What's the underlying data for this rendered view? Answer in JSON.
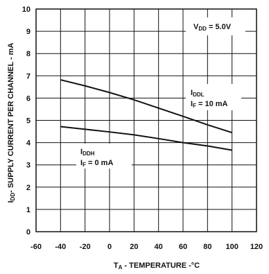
{
  "chart_data": {
    "type": "line",
    "title": "",
    "xlabel": "TA - TEMPERATURE -°C",
    "ylabel": "IDD- SUPPLY CURRENT PER CHANNEL - mA",
    "xlim": [
      -60,
      120
    ],
    "ylim": [
      0,
      10
    ],
    "x_ticks": [
      "-60",
      "-40",
      "-20",
      "0",
      "20",
      "40",
      "60",
      "80",
      "100",
      "120"
    ],
    "y_ticks": [
      "0",
      "1",
      "2",
      "3",
      "4",
      "5",
      "6",
      "7",
      "8",
      "9",
      "10"
    ],
    "grid": true,
    "series": [
      {
        "name": "IDDL IF = 10 mA",
        "x": [
          -40,
          -20,
          0,
          20,
          40,
          60,
          80,
          100
        ],
        "y": [
          6.82,
          6.55,
          6.25,
          5.92,
          5.55,
          5.18,
          4.8,
          4.45
        ]
      },
      {
        "name": "IDDH IF = 0 mA",
        "x": [
          -40,
          -20,
          0,
          20,
          40,
          60,
          80,
          100
        ],
        "y": [
          4.72,
          4.6,
          4.48,
          4.35,
          4.18,
          4.0,
          3.85,
          3.66
        ]
      }
    ],
    "annotations": {
      "vdd": {
        "main": "V",
        "sub": "DD",
        "rest": " = 5.0V"
      },
      "iddl_line1": {
        "main": "I",
        "sub": "DDL",
        "rest": ""
      },
      "iddl_line2": {
        "main": "I",
        "sub": "F",
        "rest": " = 10 mA"
      },
      "iddh_line1": {
        "main": "I",
        "sub": "DDH",
        "rest": ""
      },
      "iddh_line2": {
        "main": "I",
        "sub": "F",
        "rest": " = 0 mA"
      }
    },
    "xlabel_parts": {
      "main": "T",
      "sub": "A",
      "rest": " - TEMPERATURE -°C"
    },
    "ylabel_parts": {
      "main": "I",
      "sub": "DD",
      "rest": "- SUPPLY CURRENT PER CHANNEL - mA"
    }
  }
}
